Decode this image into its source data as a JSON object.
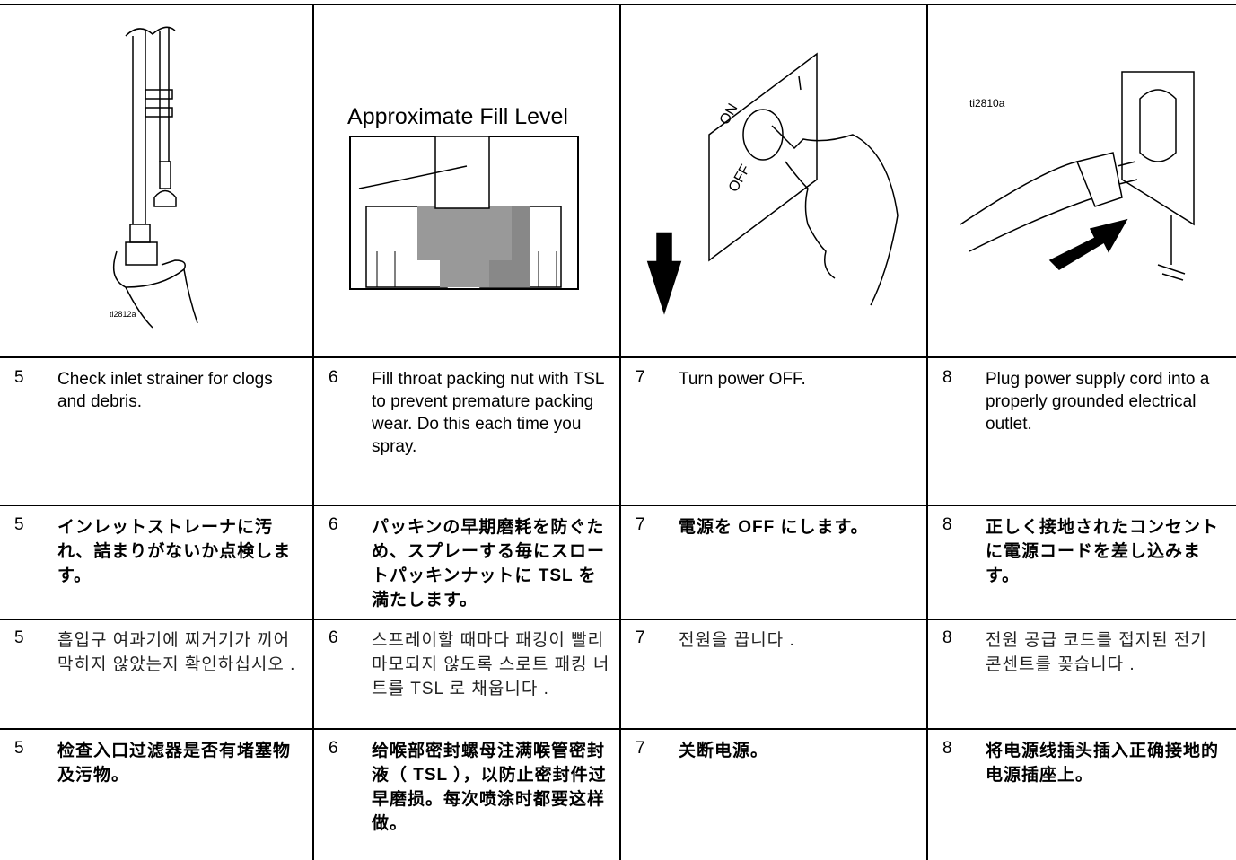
{
  "illustrations": [
    {
      "label": "ti2812a"
    },
    {
      "label": "Approximate Fill Level"
    },
    {
      "on_label": "ON",
      "off_label": "OFF"
    },
    {
      "label": "ti2810a"
    }
  ],
  "table": {
    "rows": [
      [
        {
          "number": 5,
          "text": "Check inlet strainer for clogs and debris."
        },
        {
          "number": 6,
          "text": "Fill throat packing nut with TSL to prevent premature packing wear. Do this each time you spray."
        },
        {
          "number": 7,
          "text": "Turn power OFF."
        },
        {
          "number": 8,
          "text": "Plug power supply cord into a properly grounded electrical outlet."
        }
      ],
      [
        {
          "number": 5,
          "text": "インレットストレーナに汚れ、詰まりがないか点検します。"
        },
        {
          "number": 6,
          "text": "パッキンの早期磨耗を防ぐため、スプレーする毎にスロートパッキンナットに TSL を満たします。"
        },
        {
          "number": 7,
          "text": "電源を OFF にします。"
        },
        {
          "number": 8,
          "text": "正しく接地されたコンセントに電源コードを差し込みます。"
        }
      ],
      [
        {
          "number": 5,
          "text": "흡입구 여과기에 찌거기가 끼어 막히지 않았는지 확인하십시오 ."
        },
        {
          "number": 6,
          "text": "스프레이할 때마다 패킹이 빨리 마모되지 않도록 스로트 패킹 너트를 TSL 로 채웁니다 ."
        },
        {
          "number": 7,
          "text": "전원을 끕니다 ."
        },
        {
          "number": 8,
          "text": "전원 공급 코드를 접지된 전기 콘센트를 꽂습니다 ."
        }
      ],
      [
        {
          "number": 5,
          "text": "检查入口过滤器是否有堵塞物及污物。"
        },
        {
          "number": 6,
          "text": "给喉部密封螺母注满喉管密封液（ TSL ），以防止密封件过早磨损。每次喷涂时都要这样做。"
        },
        {
          "number": 7,
          "text": "关断电源。"
        },
        {
          "number": 8,
          "text": "将电源线插头插入正确接地的电源插座上。"
        }
      ]
    ]
  }
}
